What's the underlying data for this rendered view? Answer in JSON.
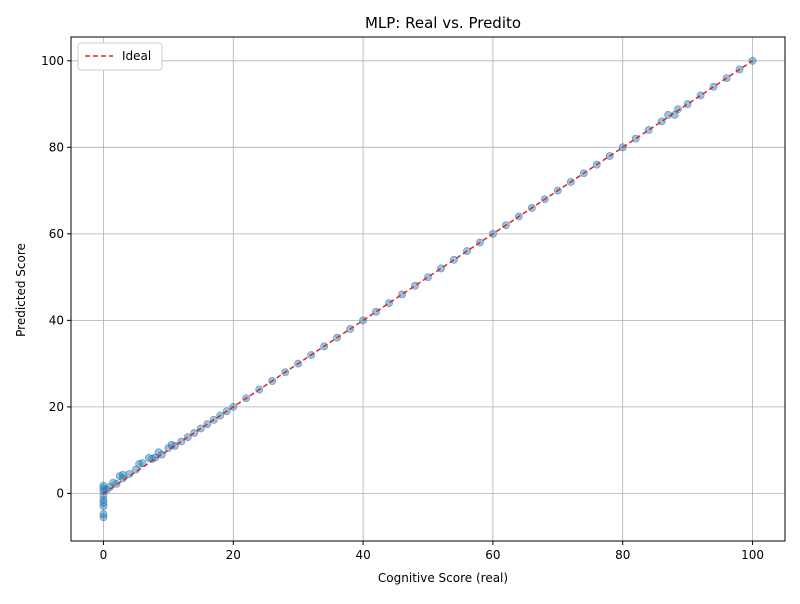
{
  "chart_data": {
    "type": "scatter",
    "title": "MLP: Real vs. Predito",
    "xlabel": "Cognitive Score (real)",
    "ylabel": "Predicted Score",
    "xlim": [
      -5,
      105
    ],
    "ylim": [
      -11,
      105.5
    ],
    "xticks": [
      0,
      20,
      40,
      60,
      80,
      100
    ],
    "yticks": [
      0,
      20,
      40,
      60,
      80,
      100
    ],
    "grid": true,
    "legend": {
      "placement": "upper-left",
      "entries": [
        "Ideal"
      ]
    },
    "colors": {
      "points": "#1f77b4",
      "ideal_line": "#d62728"
    },
    "series": [
      {
        "kind": "ideal-line",
        "label": "Ideal",
        "style": "dashed",
        "x": [
          0,
          100
        ],
        "y": [
          0,
          100
        ]
      },
      {
        "kind": "scatter",
        "points": [
          [
            0,
            -5.5
          ],
          [
            0,
            -4.8
          ],
          [
            0,
            -3
          ],
          [
            0,
            -2.2
          ],
          [
            0,
            -1.5
          ],
          [
            0,
            -0.5
          ],
          [
            0,
            0.5
          ],
          [
            0,
            1.2
          ],
          [
            0,
            1.8
          ],
          [
            0.5,
            0.8
          ],
          [
            1,
            1.5
          ],
          [
            1.5,
            2.5
          ],
          [
            2,
            2.2
          ],
          [
            2.5,
            4
          ],
          [
            3,
            3.5
          ],
          [
            3,
            4.3
          ],
          [
            4,
            4.5
          ],
          [
            5,
            5.5
          ],
          [
            5.5,
            6.8
          ],
          [
            6,
            7
          ],
          [
            7,
            8.2
          ],
          [
            7.5,
            8
          ],
          [
            8,
            8.3
          ],
          [
            8.5,
            9.5
          ],
          [
            9,
            9
          ],
          [
            10,
            10.5
          ],
          [
            10.5,
            11.2
          ],
          [
            11,
            11
          ],
          [
            12,
            12
          ],
          [
            13,
            13
          ],
          [
            14,
            14
          ],
          [
            15,
            15
          ],
          [
            16,
            16
          ],
          [
            17,
            17
          ],
          [
            18,
            18
          ],
          [
            19,
            19
          ],
          [
            20,
            20
          ],
          [
            22,
            22
          ],
          [
            24,
            24
          ],
          [
            26,
            26
          ],
          [
            28,
            28
          ],
          [
            30,
            30
          ],
          [
            32,
            32
          ],
          [
            34,
            34
          ],
          [
            36,
            36
          ],
          [
            38,
            38
          ],
          [
            40,
            40
          ],
          [
            42,
            42
          ],
          [
            44,
            44
          ],
          [
            46,
            46
          ],
          [
            48,
            48
          ],
          [
            50,
            50
          ],
          [
            52,
            52
          ],
          [
            54,
            54
          ],
          [
            56,
            56
          ],
          [
            58,
            58
          ],
          [
            60,
            60
          ],
          [
            62,
            62
          ],
          [
            64,
            64
          ],
          [
            66,
            66
          ],
          [
            68,
            68
          ],
          [
            70,
            70
          ],
          [
            72,
            72
          ],
          [
            74,
            74
          ],
          [
            76,
            76
          ],
          [
            78,
            78
          ],
          [
            80,
            80
          ],
          [
            82,
            82
          ],
          [
            84,
            84
          ],
          [
            86,
            86
          ],
          [
            87,
            87.5
          ],
          [
            88,
            87.5
          ],
          [
            88.5,
            88.8
          ],
          [
            90,
            90
          ],
          [
            92,
            92
          ],
          [
            94,
            94
          ],
          [
            96,
            96
          ],
          [
            98,
            98
          ],
          [
            100,
            100
          ]
        ]
      }
    ]
  }
}
